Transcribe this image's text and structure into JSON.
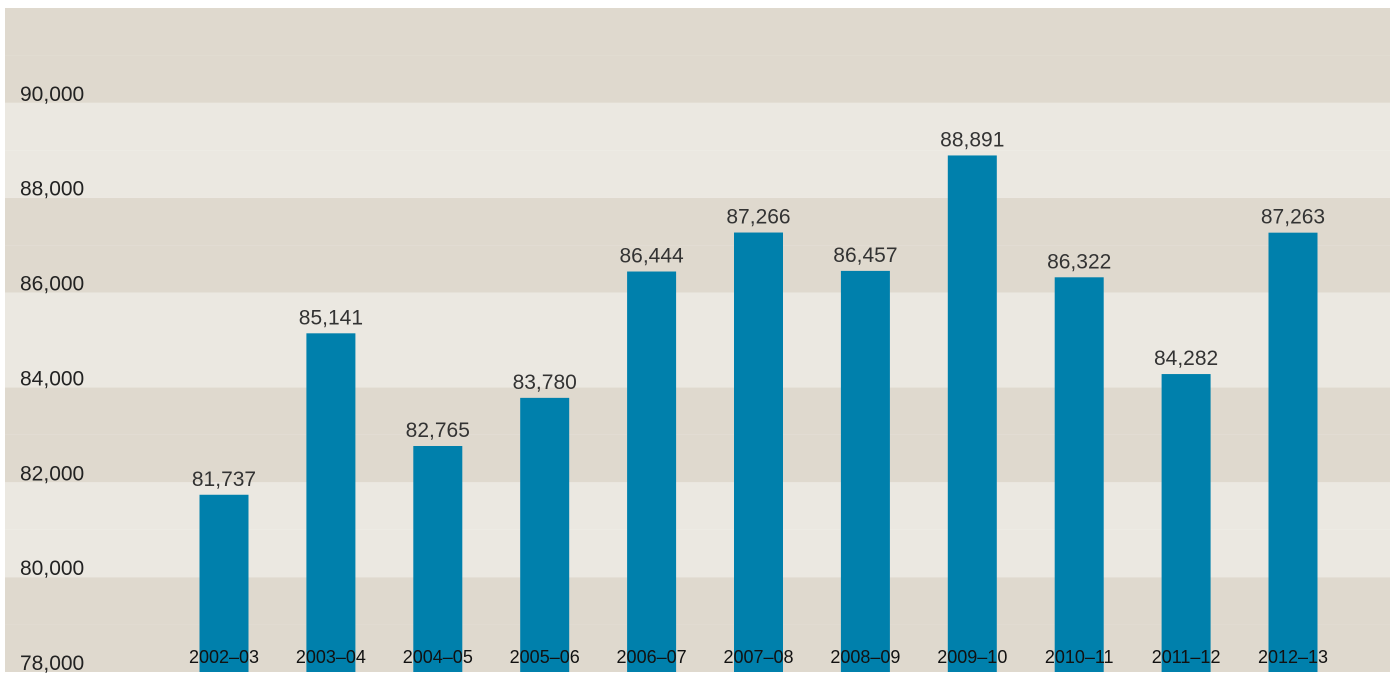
{
  "chart_data": {
    "type": "bar",
    "categories": [
      "2002–03",
      "2003–04",
      "2004–05",
      "2005–06",
      "2006–07",
      "2007–08",
      "2008–09",
      "2009–10",
      "2010–11",
      "2011–12",
      "2012–13"
    ],
    "values": [
      81737,
      85141,
      82765,
      83780,
      86444,
      87266,
      86457,
      88891,
      86322,
      84282,
      87263
    ],
    "data_labels": [
      "81,737",
      "85,141",
      "82,765",
      "83,780",
      "86,444",
      "87,266",
      "86,457",
      "88,891",
      "86,322",
      "84,282",
      "87,263"
    ],
    "y_ticks": [
      78000,
      80000,
      82000,
      84000,
      86000,
      88000,
      90000
    ],
    "y_tick_labels": [
      "78,000",
      "80,000",
      "82,000",
      "84,000",
      "86,000",
      "88,000",
      "90,000"
    ],
    "ylim": [
      78000,
      92000
    ],
    "grid": "alternating horizontal bands",
    "legend": "none",
    "colors": {
      "bar": "#0080ac",
      "band_dark": "#dfd9ce",
      "band_light": "#ebe8e1"
    }
  }
}
